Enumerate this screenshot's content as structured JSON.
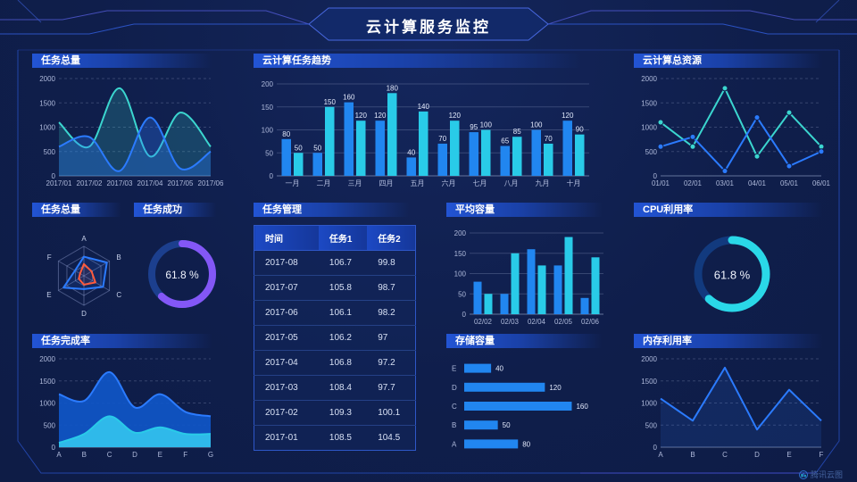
{
  "header": {
    "title": "云计算服务监控"
  },
  "watermark": {
    "label": "腾讯云图"
  },
  "colors": {
    "blue": "#2186f0",
    "cyan": "#29cbe8",
    "teal": "#3bd6cf",
    "line_blue": "#2b7bff",
    "purple": "#8357f6",
    "red": "#ff5a3c",
    "cyan_bright": "#2ad8e8"
  },
  "panels": [
    {
      "id": "tasks-line",
      "title": "任务总量"
    },
    {
      "id": "task-trend",
      "title": "云计算任务趋势"
    },
    {
      "id": "resources-line",
      "title": "云计算总资源"
    },
    {
      "id": "task-radar",
      "title": "任务总量"
    },
    {
      "id": "task-success",
      "title": "任务成功"
    },
    {
      "id": "task-table",
      "title": "任务管理"
    },
    {
      "id": "avg-capacity",
      "title": "平均容量"
    },
    {
      "id": "cpu-usage",
      "title": "CPU利用率"
    },
    {
      "id": "completion-area",
      "title": "任务完成率"
    },
    {
      "id": "storage-hbar",
      "title": "存储容量"
    },
    {
      "id": "memory-line",
      "title": "内存利用率"
    }
  ],
  "chart_data": [
    {
      "id": "tasks-line",
      "type": "line",
      "smooth": true,
      "x": [
        "2017/01",
        "2017/02",
        "2017/03",
        "2017/04",
        "2017/05",
        "2017/06"
      ],
      "ylim": [
        0,
        2000
      ],
      "yticks": [
        0,
        500,
        1000,
        1500,
        2000
      ],
      "grid": "dashed",
      "series": [
        {
          "name": "series-cyan",
          "color": "teal",
          "fillOpacity": 0.2,
          "values": [
            1100,
            600,
            1800,
            400,
            1300,
            600
          ]
        },
        {
          "name": "series-blue",
          "color": "line_blue",
          "fillOpacity": 0.3,
          "values": [
            600,
            800,
            100,
            1200,
            150,
            500
          ]
        }
      ]
    },
    {
      "id": "task-trend",
      "type": "bar",
      "labels": true,
      "categories": [
        "一月",
        "二月",
        "三月",
        "四月",
        "五月",
        "六月",
        "七月",
        "八月",
        "九月",
        "十月"
      ],
      "ylim": [
        0,
        200
      ],
      "yticks": [
        0,
        50,
        100,
        150,
        200
      ],
      "series": [
        {
          "name": "任务1",
          "color": "blue",
          "values": [
            80,
            50,
            160,
            120,
            40,
            70,
            95,
            65,
            100,
            120
          ]
        },
        {
          "name": "任务2",
          "color": "cyan",
          "values": [
            50,
            150,
            120,
            180,
            140,
            120,
            100,
            85,
            70,
            90
          ]
        }
      ]
    },
    {
      "id": "resources-line",
      "type": "line",
      "smooth": false,
      "markers": true,
      "x": [
        "01/01",
        "02/01",
        "03/01",
        "04/01",
        "05/01",
        "06/01"
      ],
      "ylim": [
        0,
        2000
      ],
      "yticks": [
        0,
        500,
        1000,
        1500,
        2000
      ],
      "grid": "dashed",
      "series": [
        {
          "name": "series-cyan",
          "color": "teal",
          "values": [
            1100,
            600,
            1800,
            400,
            1300,
            600
          ]
        },
        {
          "name": "series-blue",
          "color": "line_blue",
          "values": [
            600,
            800,
            100,
            1200,
            200,
            500
          ]
        }
      ]
    },
    {
      "id": "task-radar",
      "type": "radar",
      "axes": [
        "A",
        "B",
        "C",
        "D",
        "E",
        "F"
      ],
      "max": 100,
      "levels": 3,
      "series": [
        {
          "name": "series-blue",
          "color": "line_blue",
          "fillOpacity": 0.12,
          "values": [
            65,
            90,
            75,
            45,
            80,
            35
          ]
        },
        {
          "name": "series-red",
          "color": "red",
          "fillOpacity": 0.08,
          "values": [
            40,
            30,
            45,
            30,
            20,
            15
          ]
        }
      ]
    },
    {
      "id": "task-success",
      "type": "donut",
      "value": 61.8,
      "unit": "%",
      "color": "purple",
      "track": "#1c3f8e",
      "r": 34,
      "sw": 8,
      "font": 12
    },
    {
      "id": "task-table",
      "type": "table",
      "columns": [
        "时间",
        "任务1",
        "任务2"
      ],
      "rows": [
        [
          "2017-08",
          "106.7",
          "99.8"
        ],
        [
          "2017-07",
          "105.8",
          "98.7"
        ],
        [
          "2017-06",
          "106.1",
          "98.2"
        ],
        [
          "2017-05",
          "106.2",
          "97"
        ],
        [
          "2017-04",
          "106.8",
          "97.2"
        ],
        [
          "2017-03",
          "108.4",
          "97.7"
        ],
        [
          "2017-02",
          "109.3",
          "100.1"
        ],
        [
          "2017-01",
          "108.5",
          "104.5"
        ]
      ]
    },
    {
      "id": "avg-capacity",
      "type": "bar",
      "labels": false,
      "categories": [
        "02/02",
        "02/03",
        "02/04",
        "02/05",
        "02/06"
      ],
      "ylim": [
        0,
        200
      ],
      "yticks": [
        0,
        50,
        100,
        150,
        200
      ],
      "series": [
        {
          "name": "series-blue",
          "color": "blue",
          "values": [
            80,
            50,
            160,
            120,
            40
          ]
        },
        {
          "name": "series-cyan",
          "color": "cyan",
          "values": [
            50,
            150,
            120,
            190,
            140
          ]
        }
      ]
    },
    {
      "id": "cpu-usage",
      "type": "donut",
      "value": 61.8,
      "unit": "%",
      "color": "cyan_bright",
      "track": "#123a7e",
      "r": 38,
      "sw": 9,
      "font": 13
    },
    {
      "id": "completion-area",
      "type": "line",
      "smooth": true,
      "x": [
        "A",
        "B",
        "C",
        "D",
        "E",
        "F",
        "G"
      ],
      "ylim": [
        0,
        2000
      ],
      "yticks": [
        0,
        500,
        1000,
        1500,
        2000
      ],
      "grid": "dashed",
      "series": [
        {
          "name": "series-blue",
          "color": "line_blue",
          "fill": "#0f56c8",
          "fillOpacity": 0.92,
          "values": [
            1200,
            1050,
            1700,
            900,
            1200,
            800,
            700
          ]
        },
        {
          "name": "series-cyan",
          "color": "cyan",
          "fill": "#2fb9ea",
          "fillOpacity": 1,
          "values": [
            100,
            300,
            700,
            330,
            450,
            300,
            300
          ]
        }
      ]
    },
    {
      "id": "storage-hbar",
      "type": "hbar",
      "categories": [
        "E",
        "D",
        "C",
        "B",
        "A"
      ],
      "values": [
        40,
        120,
        160,
        50,
        80
      ],
      "xmax": 170,
      "color": "blue"
    },
    {
      "id": "memory-line",
      "type": "line",
      "smooth": false,
      "x": [
        "A",
        "B",
        "C",
        "D",
        "E",
        "F"
      ],
      "ylim": [
        0,
        2000
      ],
      "yticks": [
        0,
        500,
        1000,
        1500,
        2000
      ],
      "grid": "dashed",
      "series": [
        {
          "name": "series-blue",
          "color": "line_blue",
          "fill": "#2b7bff",
          "fillOpacity": 0.13,
          "values": [
            1100,
            600,
            1800,
            400,
            1300,
            600
          ]
        }
      ]
    }
  ]
}
